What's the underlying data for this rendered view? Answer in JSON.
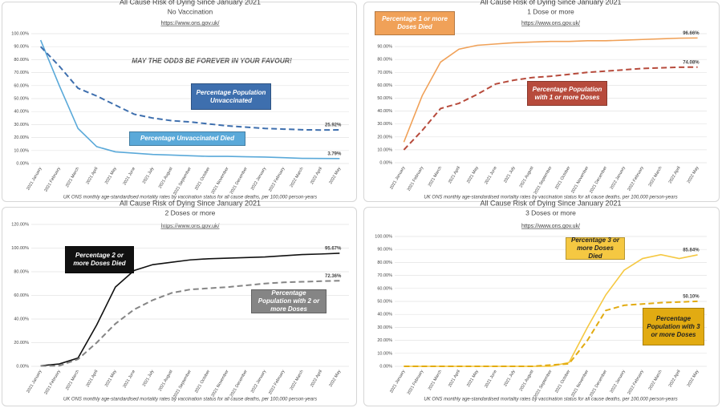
{
  "chart_data": [
    {
      "type": "line",
      "title": "All Cause Risk of Dying Since January 2021",
      "subtitle": "No Vaccination",
      "url": "https://www.ons.gov.uk/",
      "annotation": "MAY THE ODDS BE FOREVER IN YOUR FAVOUR!",
      "footnote": "UK ONS monthly age-standardised mortality rates by vaccination status for all cause deaths, per 100,000 person-years",
      "categories": [
        "2021 January",
        "2021 February",
        "2021 March",
        "2021 April",
        "2021 May",
        "2021 June",
        "2021 July",
        "2021 August",
        "2021 September",
        "2021 October",
        "2021 November",
        "2021 December",
        "2022 January",
        "2022 February",
        "2022 March",
        "2022 April",
        "2022 May"
      ],
      "ylim": [
        0,
        100
      ],
      "yticks": [
        {
          "value": 0,
          "label": "0.00%"
        },
        {
          "value": 10,
          "label": "10.00%"
        },
        {
          "value": 20,
          "label": "20.00%"
        },
        {
          "value": 30,
          "label": "30.00%"
        },
        {
          "value": 40,
          "label": "40.00%"
        },
        {
          "value": 50,
          "label": "50.00%"
        },
        {
          "value": 60,
          "label": "60.00%"
        },
        {
          "value": 70,
          "label": "70.00%"
        },
        {
          "value": 80,
          "label": "80.00%"
        },
        {
          "value": 90,
          "label": "90.00%"
        },
        {
          "value": 100,
          "label": "100.00%"
        }
      ],
      "series": [
        {
          "name": "Percentage Unvaccinated Died",
          "color": "#5aa9d9",
          "line_style": "solid",
          "values": [
            95,
            60,
            27,
            13,
            9,
            8,
            7,
            6.5,
            6,
            5.5,
            5.5,
            5.2,
            5,
            4.5,
            4,
            3.9,
            3.79
          ],
          "value_labels": [
            null,
            null,
            null,
            null,
            null,
            null,
            null,
            null,
            null,
            null,
            null,
            null,
            null,
            null,
            null,
            null,
            "3.79%"
          ]
        },
        {
          "name": "Percentage Population Unvaccinated",
          "color": "#3e6fae",
          "line_style": "dashed",
          "values": [
            90,
            75,
            58,
            52,
            45,
            38,
            35,
            33,
            32,
            30.5,
            29,
            28,
            27,
            26.5,
            26,
            25.8,
            25.92
          ],
          "value_labels": [
            null,
            null,
            null,
            null,
            null,
            null,
            null,
            null,
            null,
            null,
            null,
            null,
            null,
            null,
            null,
            null,
            "25.92%"
          ]
        }
      ]
    },
    {
      "type": "line",
      "title": "All Cause Risk of Dying Since January 2021",
      "subtitle": "1 Dose or more",
      "url": "https://www.ons.gov.uk/",
      "footnote": "UK ONS monthly age-standardised mortality rates by vaccination status for all cause deaths, per 100,000 person-years",
      "categories": [
        "2021 January",
        "2021 February",
        "2021 March",
        "2021 April",
        "2021 May",
        "2021 June",
        "2021 July",
        "2021 August",
        "2021 September",
        "2021 October",
        "2021 November",
        "2021 December",
        "2022 January",
        "2022 February",
        "2022 March",
        "2022 April",
        "2022 May"
      ],
      "ylim": [
        0,
        100
      ],
      "yticks": [
        {
          "value": 0,
          "label": "0.00%"
        },
        {
          "value": 10,
          "label": "10.00%"
        },
        {
          "value": 20,
          "label": "20.00%"
        },
        {
          "value": 30,
          "label": "30.00%"
        },
        {
          "value": 40,
          "label": "40.00%"
        },
        {
          "value": 50,
          "label": "50.00%"
        },
        {
          "value": 60,
          "label": "60.00%"
        },
        {
          "value": 70,
          "label": "70.00%"
        },
        {
          "value": 80,
          "label": "80.00%"
        },
        {
          "value": 90,
          "label": "90.00%"
        },
        {
          "value": 100,
          "label": "100.00%"
        }
      ],
      "series": [
        {
          "name": "Percentage 1 or more Doses Died",
          "color": "#f0a158",
          "line_style": "solid",
          "values": [
            16,
            52,
            78,
            88,
            91,
            92,
            93,
            93.5,
            94,
            94,
            94.5,
            94.5,
            95,
            95.5,
            96,
            96.5,
            96.66
          ],
          "value_labels": [
            null,
            null,
            null,
            null,
            null,
            null,
            null,
            null,
            null,
            null,
            null,
            null,
            null,
            null,
            null,
            null,
            "96.66%"
          ]
        },
        {
          "name": "Percentage Population with 1 or more Doses",
          "color": "#b74b3c",
          "line_style": "dashed",
          "values": [
            10,
            25,
            42,
            46,
            53,
            61,
            64,
            66,
            67,
            68.5,
            70,
            71,
            72,
            73,
            73.5,
            74,
            74.08
          ],
          "value_labels": [
            null,
            null,
            null,
            null,
            null,
            null,
            null,
            null,
            null,
            null,
            null,
            null,
            null,
            null,
            null,
            null,
            "74.08%"
          ]
        }
      ]
    },
    {
      "type": "line",
      "title": "All Cause Risk of Dying Since January 2021",
      "subtitle": "2 Doses or more",
      "url": "https://www.ons.gov.uk/",
      "footnote": "UK ONS monthly age-standardised mortality rates by vaccination status for all cause deaths, per 100,000 person-years",
      "categories": [
        "2021 January",
        "2021 February",
        "2021 March",
        "2021 April",
        "2021 May",
        "2021 June",
        "2021 July",
        "2021 August",
        "2021 September",
        "2021 October",
        "2021 November",
        "2021 December",
        "2022 January",
        "2022 February",
        "2022 March",
        "2022 April",
        "2022 May"
      ],
      "ylim": [
        0,
        120
      ],
      "yticks": [
        {
          "value": 0,
          "label": "0.00%"
        },
        {
          "value": 20,
          "label": "20.00%"
        },
        {
          "value": 40,
          "label": "40.00%"
        },
        {
          "value": 60,
          "label": "60.00%"
        },
        {
          "value": 80,
          "label": "80.00%"
        },
        {
          "value": 100,
          "label": "100.00%"
        },
        {
          "value": 120,
          "label": "120.00%"
        }
      ],
      "series": [
        {
          "name": "Percentage 2 or more Doses Died",
          "color": "#111111",
          "line_style": "solid",
          "values": [
            0.5,
            2,
            7,
            35,
            67,
            81,
            86,
            88,
            90,
            91,
            91.5,
            92,
            92.5,
            93.5,
            94.5,
            95,
            95.67
          ],
          "value_labels": [
            null,
            null,
            null,
            null,
            null,
            null,
            null,
            null,
            null,
            null,
            null,
            null,
            null,
            null,
            null,
            null,
            "95.67%"
          ]
        },
        {
          "name": "Percentage Population with 2 or more Doses",
          "color": "#858585",
          "line_style": "dashed",
          "values": [
            0.3,
            0.5,
            6,
            20,
            36,
            48,
            56,
            62,
            65,
            66,
            67,
            68.5,
            70,
            71,
            71.5,
            72,
            72.36
          ],
          "value_labels": [
            null,
            null,
            null,
            null,
            null,
            null,
            null,
            null,
            null,
            null,
            null,
            null,
            null,
            null,
            null,
            null,
            "72.36%"
          ]
        }
      ]
    },
    {
      "type": "line",
      "title": "All Cause Risk of Dying Since January 2021",
      "subtitle": "3 Doses or more",
      "url": "https://www.ons.gov.uk/",
      "footnote": "UK ONS monthly age-standardised mortality rates by vaccination status for all cause deaths, per 100,000 person-years",
      "categories": [
        "2021 January",
        "2021 February",
        "2021 March",
        "2021 April",
        "2021 May",
        "2021 June",
        "2021 July",
        "2021 August",
        "2021 September",
        "2021 October",
        "2021 November",
        "2021 December",
        "2022 January",
        "2022 February",
        "2022 March",
        "2022 April",
        "2022 May"
      ],
      "ylim": [
        0,
        100
      ],
      "yticks": [
        {
          "value": 0,
          "label": "0.00%"
        },
        {
          "value": 10,
          "label": "10.00%"
        },
        {
          "value": 20,
          "label": "20.00%"
        },
        {
          "value": 30,
          "label": "30.00%"
        },
        {
          "value": 40,
          "label": "40.00%"
        },
        {
          "value": 50,
          "label": "50.00%"
        },
        {
          "value": 60,
          "label": "60.00%"
        },
        {
          "value": 70,
          "label": "70.00%"
        },
        {
          "value": 80,
          "label": "80.00%"
        },
        {
          "value": 90,
          "label": "90.00%"
        },
        {
          "value": 100,
          "label": "100.00%"
        }
      ],
      "series": [
        {
          "name": "Percentage 3 or more Doses Died",
          "color": "#f5c842",
          "line_style": "solid",
          "values": [
            0,
            0,
            0,
            0,
            0,
            0,
            0,
            0,
            0,
            3,
            30,
            55,
            74,
            83,
            86,
            83,
            85.84
          ],
          "value_labels": [
            null,
            null,
            null,
            null,
            null,
            null,
            null,
            null,
            null,
            null,
            null,
            null,
            null,
            null,
            null,
            null,
            "85.84%"
          ]
        },
        {
          "name": "Percentage Population with 3 or more Doses",
          "color": "#e2ab12",
          "line_style": "dashed",
          "values": [
            0,
            0,
            0,
            0,
            0,
            0,
            0,
            0,
            1,
            2,
            20,
            43,
            47,
            48,
            49,
            49.5,
            50.1
          ],
          "value_labels": [
            null,
            null,
            null,
            null,
            null,
            null,
            null,
            null,
            null,
            null,
            null,
            null,
            null,
            null,
            null,
            null,
            "50.10%"
          ]
        }
      ]
    }
  ]
}
